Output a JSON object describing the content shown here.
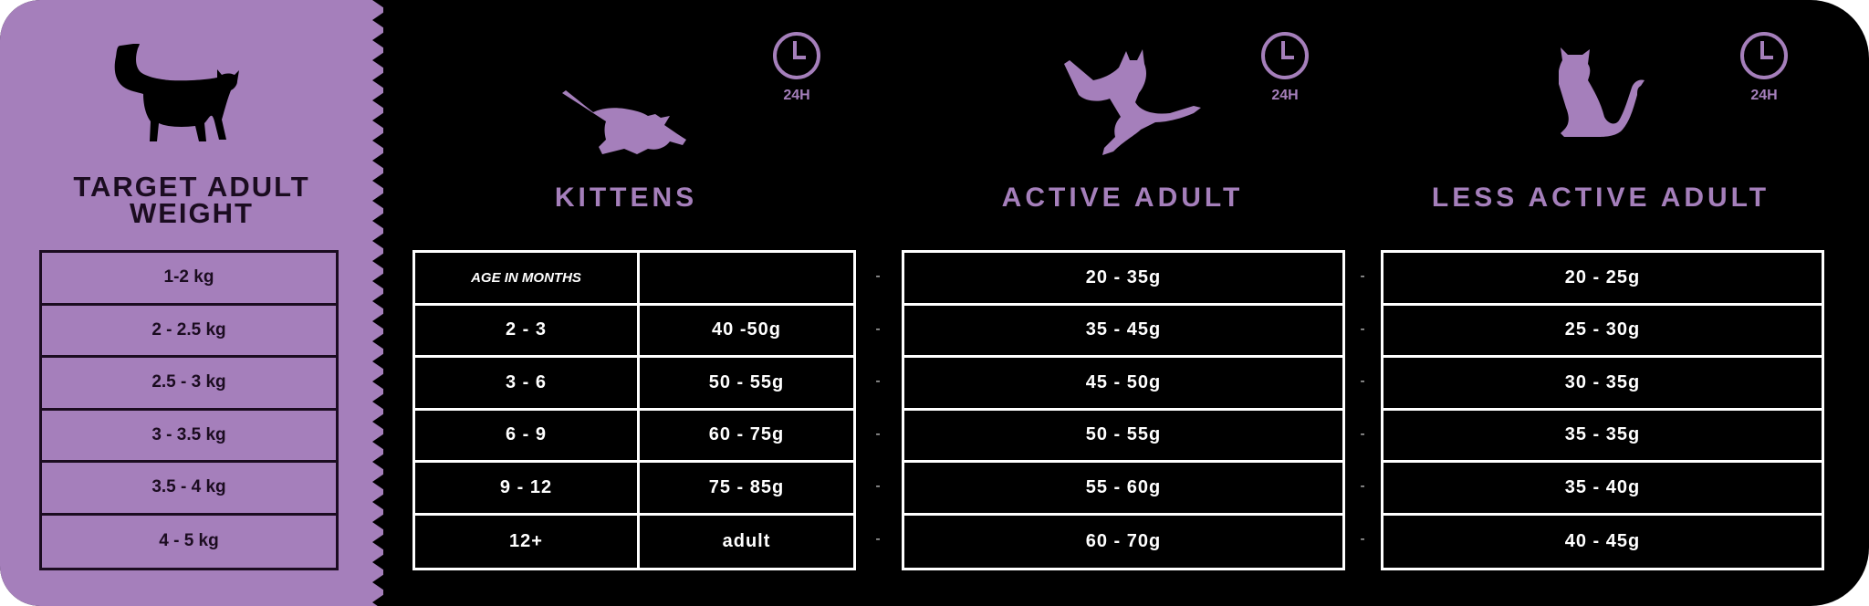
{
  "colors": {
    "purple": "#a57fbb",
    "black": "#000000",
    "dark_text": "#1b0c20",
    "white": "#ffffff"
  },
  "left_panel": {
    "title_line1": "TARGET ADULT",
    "title_line2": "WEIGHT",
    "icon": "standing-cat-icon",
    "weights": [
      "1-2 kg",
      "2 - 2.5 kg",
      "2.5 - 3 kg",
      "3 - 3.5 kg",
      "3.5 - 4 kg",
      "4 - 5 kg"
    ]
  },
  "clock_label": "24H",
  "kittens": {
    "title": "KITTENS",
    "icon": "playing-kitten-icon",
    "header": [
      "AGE IN MONTHS",
      ""
    ],
    "rows": [
      [
        "2 - 3",
        "40 -50g"
      ],
      [
        "3 - 6",
        "50 - 55g"
      ],
      [
        "6 - 9",
        "60 - 75g"
      ],
      [
        "9 - 12",
        "75 - 85g"
      ],
      [
        "12+",
        "adult"
      ]
    ]
  },
  "separator": "-",
  "active_adult": {
    "title": "ACTIVE ADULT",
    "icon": "jumping-cat-icon",
    "rows": [
      "20 - 35g",
      "35 - 45g",
      "45 - 50g",
      "50 - 55g",
      "55 - 60g",
      "60 - 70g"
    ]
  },
  "less_active_adult": {
    "title": "LESS ACTIVE ADULT",
    "icon": "sitting-cat-icon",
    "rows": [
      "20 - 25g",
      "25 - 30g",
      "30 - 35g",
      "35 - 35g",
      "35 - 40g",
      "40 - 45g"
    ]
  }
}
